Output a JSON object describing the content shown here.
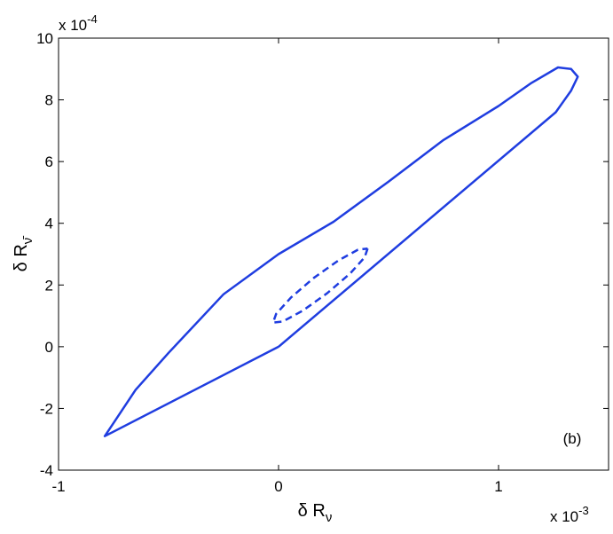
{
  "chart_data": {
    "type": "line",
    "x_label": {
      "main": "δ R",
      "sub": "ν"
    },
    "y_label": {
      "main": "δ R",
      "sub": "ν̄"
    },
    "x_multiplier": {
      "base": "x 10",
      "exponent": "-3"
    },
    "y_multiplier": {
      "base": "x 10",
      "exponent": "-4"
    },
    "annotation": "(b)",
    "xlim": [
      -1,
      1.5
    ],
    "xticks": [
      -1,
      0,
      1
    ],
    "ylim": [
      -4,
      10
    ],
    "yticks": [
      -4,
      -2,
      0,
      2,
      4,
      6,
      8,
      10
    ],
    "series": [
      {
        "color": "#1f3de0",
        "style": "solid",
        "x": [
          0,
          1.26,
          1.33,
          1.36,
          1.33,
          1.27,
          1.15,
          1.0,
          0.75,
          0.5,
          0.25,
          0,
          -0.25,
          -0.5,
          -0.65,
          -0.79,
          0
        ],
        "values": [
          0,
          7.6,
          8.3,
          8.75,
          9.0,
          9.05,
          8.55,
          7.8,
          6.7,
          5.35,
          4.05,
          3.0,
          1.7,
          -0.2,
          -1.4,
          -2.9,
          0
        ]
      },
      {
        "color": "#1f3de0",
        "style": "dash",
        "x": [
          0.405,
          0.391,
          0.324,
          0.22,
          0.109,
          0.019,
          -0.025,
          -0.011,
          0.057,
          0.16,
          0.272,
          0.361,
          0.405
        ],
        "values": [
          3.18,
          2.894,
          2.364,
          1.73,
          1.164,
          0.816,
          0.78,
          1.066,
          1.597,
          2.23,
          2.797,
          3.144,
          3.18
        ]
      }
    ]
  }
}
